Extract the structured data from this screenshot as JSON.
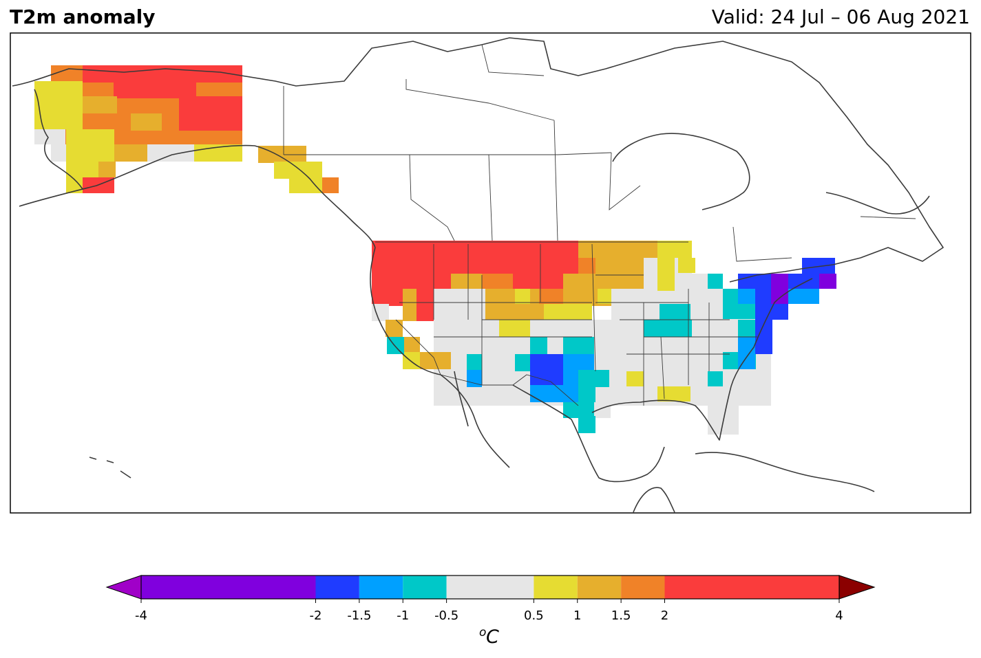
{
  "title": "T2m anomaly",
  "valid": "Valid: 24 Jul – 06 Aug 2021",
  "colorbar": {
    "unit_base": "o",
    "unit_letter": "C",
    "levels": [
      -4,
      -2,
      -1.5,
      -1,
      -0.5,
      0.5,
      1,
      1.5,
      2,
      4
    ],
    "tick_labels": [
      "-4",
      "-2",
      "-1.5",
      "-1",
      "-0.5",
      "0.5",
      "1",
      "1.5",
      "2",
      "4"
    ],
    "colors": [
      "#8000de",
      "#1f3cff",
      "#00a0ff",
      "#00c8c8",
      "#e6e6e6",
      "#e6dc32",
      "#e6af2d",
      "#f08228",
      "#fa3c3c"
    ],
    "extend_low_color": "#a000c8",
    "extend_high_color": "#8b0000"
  },
  "map": {
    "region": "North America",
    "field": "2 m temperature anomaly"
  }
}
